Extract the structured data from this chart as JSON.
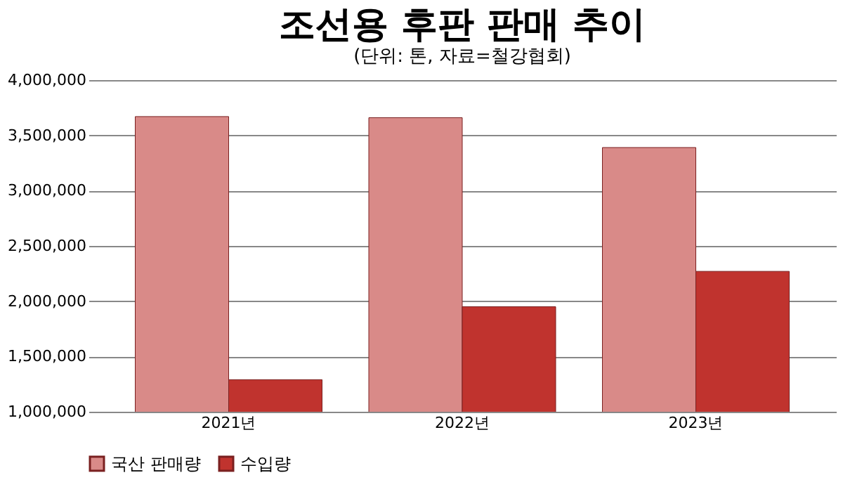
{
  "chart_data": {
    "type": "bar",
    "title": "조선용 후판 판매 추이",
    "subtitle": "(단위: 톤, 자료=철강협회)",
    "categories": [
      "2021년",
      "2022년",
      "2023년"
    ],
    "series": [
      {
        "name": "국산 판매량",
        "color": "#d98a88",
        "values": [
          3670000,
          3660000,
          3390000
        ]
      },
      {
        "name": "수입량",
        "color": "#c0332e",
        "values": [
          1290000,
          1950000,
          2270000
        ]
      }
    ],
    "ylim": [
      1000000,
      4000000
    ],
    "yticks": [
      {
        "value": 1000000,
        "label": "1,000,000"
      },
      {
        "value": 1500000,
        "label": "1,500,000"
      },
      {
        "value": 2000000,
        "label": "2,000,000"
      },
      {
        "value": 2500000,
        "label": "2,500,000"
      },
      {
        "value": 3000000,
        "label": "3,000,000"
      },
      {
        "value": 3500000,
        "label": "3,500,000"
      },
      {
        "value": 4000000,
        "label": "4,000,000"
      }
    ],
    "grid": "y",
    "legend": "bottom"
  }
}
